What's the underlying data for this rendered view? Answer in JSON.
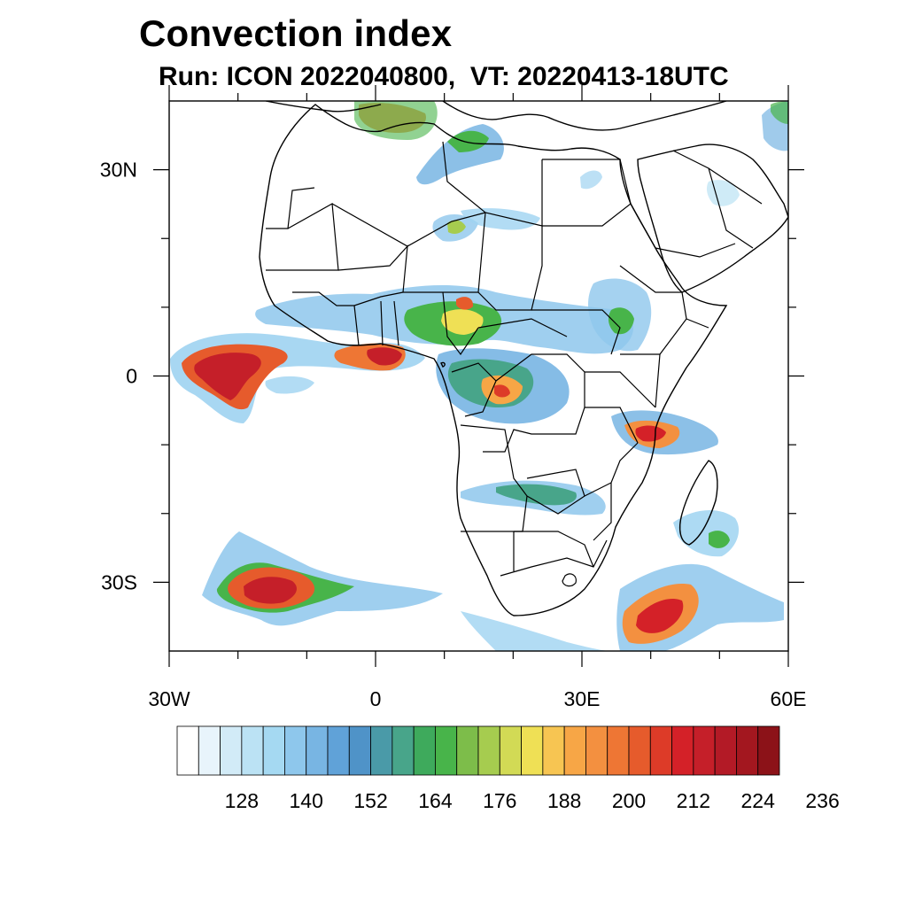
{
  "header": {
    "title": "Convection index",
    "subtitle": "Run: ICON 2022040800,  VT: 20220413-18UTC"
  },
  "map": {
    "extent": {
      "lon": [
        -30,
        60
      ],
      "lat": [
        -40,
        40
      ]
    },
    "lat_tick_labels": [
      {
        "lat": 30,
        "label": "30N"
      },
      {
        "lat": 0,
        "label": "0"
      },
      {
        "lat": -30,
        "label": "30S"
      }
    ],
    "lon_tick_labels": [
      {
        "lon": -30,
        "label": "30W"
      },
      {
        "lon": 0,
        "label": "0"
      },
      {
        "lon": 30,
        "label": "30E"
      },
      {
        "lon": 60,
        "label": "60E"
      }
    ],
    "minor_lon_ticks": [
      -20,
      -10,
      10,
      20,
      40,
      50
    ],
    "minor_lat_ticks": [
      20,
      10,
      -10,
      -20
    ]
  },
  "colorbar": {
    "colors": [
      "#ffffff",
      "#e8f4fb",
      "#d2ebf7",
      "#bbe2f4",
      "#a5d9f2",
      "#8ec7ec",
      "#78b5e3",
      "#60a2d8",
      "#4f93c8",
      "#4a9aa8",
      "#48a58a",
      "#3eaa5c",
      "#48b44a",
      "#7dbd4a",
      "#a6cc4f",
      "#d2da55",
      "#efe055",
      "#f7c552",
      "#f7a646",
      "#f39040",
      "#ee7634",
      "#e65b2c",
      "#dd3b28",
      "#d42128",
      "#c51f29",
      "#b31a26",
      "#a3171f",
      "#8c1218"
    ],
    "labels": [
      "128",
      "140",
      "152",
      "164",
      "176",
      "188",
      "200",
      "212",
      "224",
      "236"
    ]
  }
}
